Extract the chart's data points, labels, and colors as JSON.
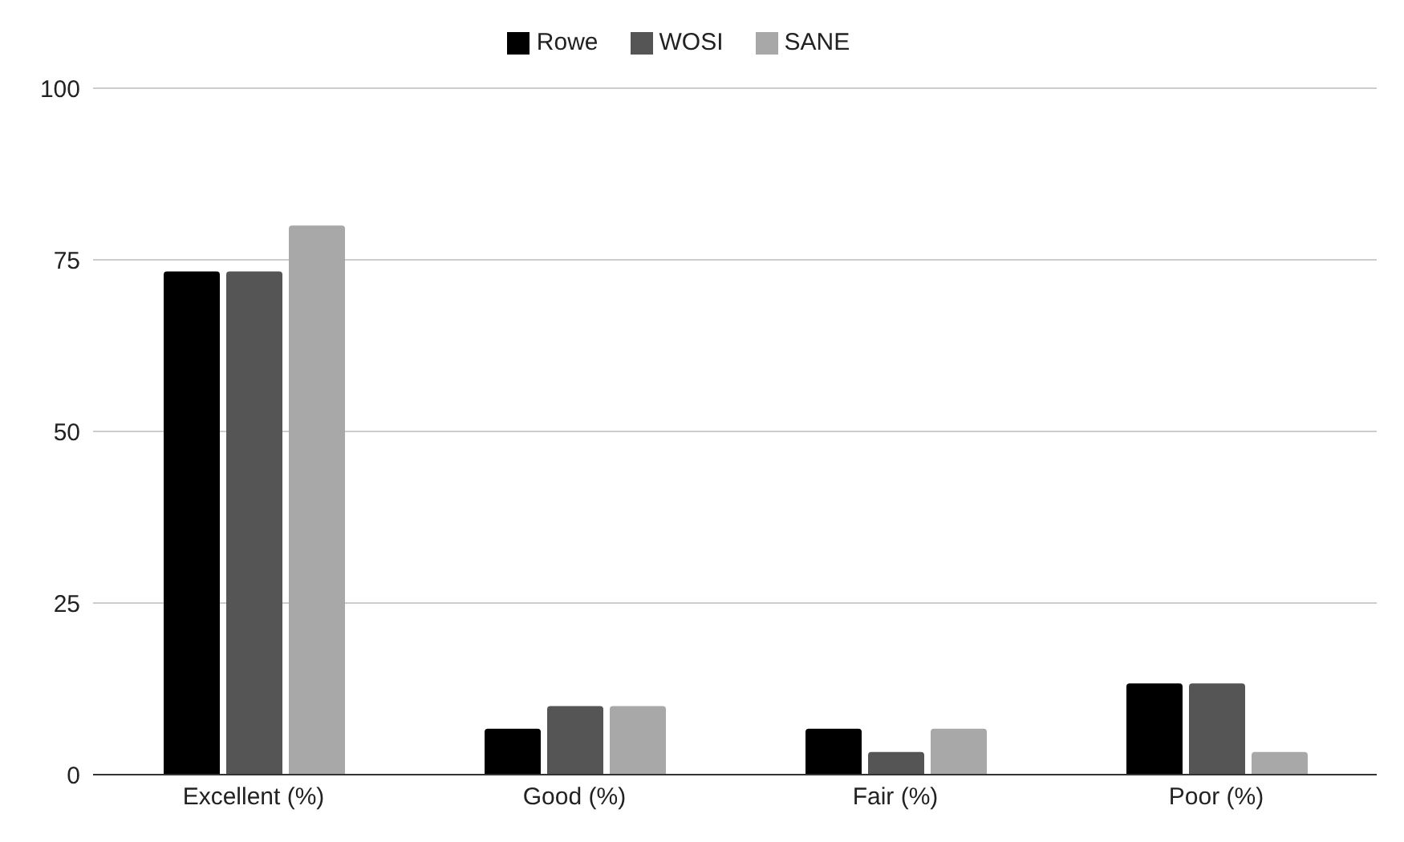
{
  "chart_data": {
    "type": "bar",
    "categories": [
      "Excellent (%)",
      "Good (%)",
      "Fair (%)",
      "Poor (%)"
    ],
    "series": [
      {
        "name": "Rowe",
        "color": "#000000",
        "values": [
          73.3,
          6.7,
          6.7,
          13.3
        ]
      },
      {
        "name": "WOSI",
        "color": "#555555",
        "values": [
          73.3,
          10,
          3.3,
          13.3
        ]
      },
      {
        "name": "SANE",
        "color": "#a8a8a8",
        "values": [
          80,
          10,
          6.7,
          3.3
        ]
      }
    ],
    "ylim": [
      0,
      100
    ],
    "yticks": [
      0,
      25,
      50,
      75,
      100
    ],
    "grid": "y",
    "legend": "top"
  }
}
